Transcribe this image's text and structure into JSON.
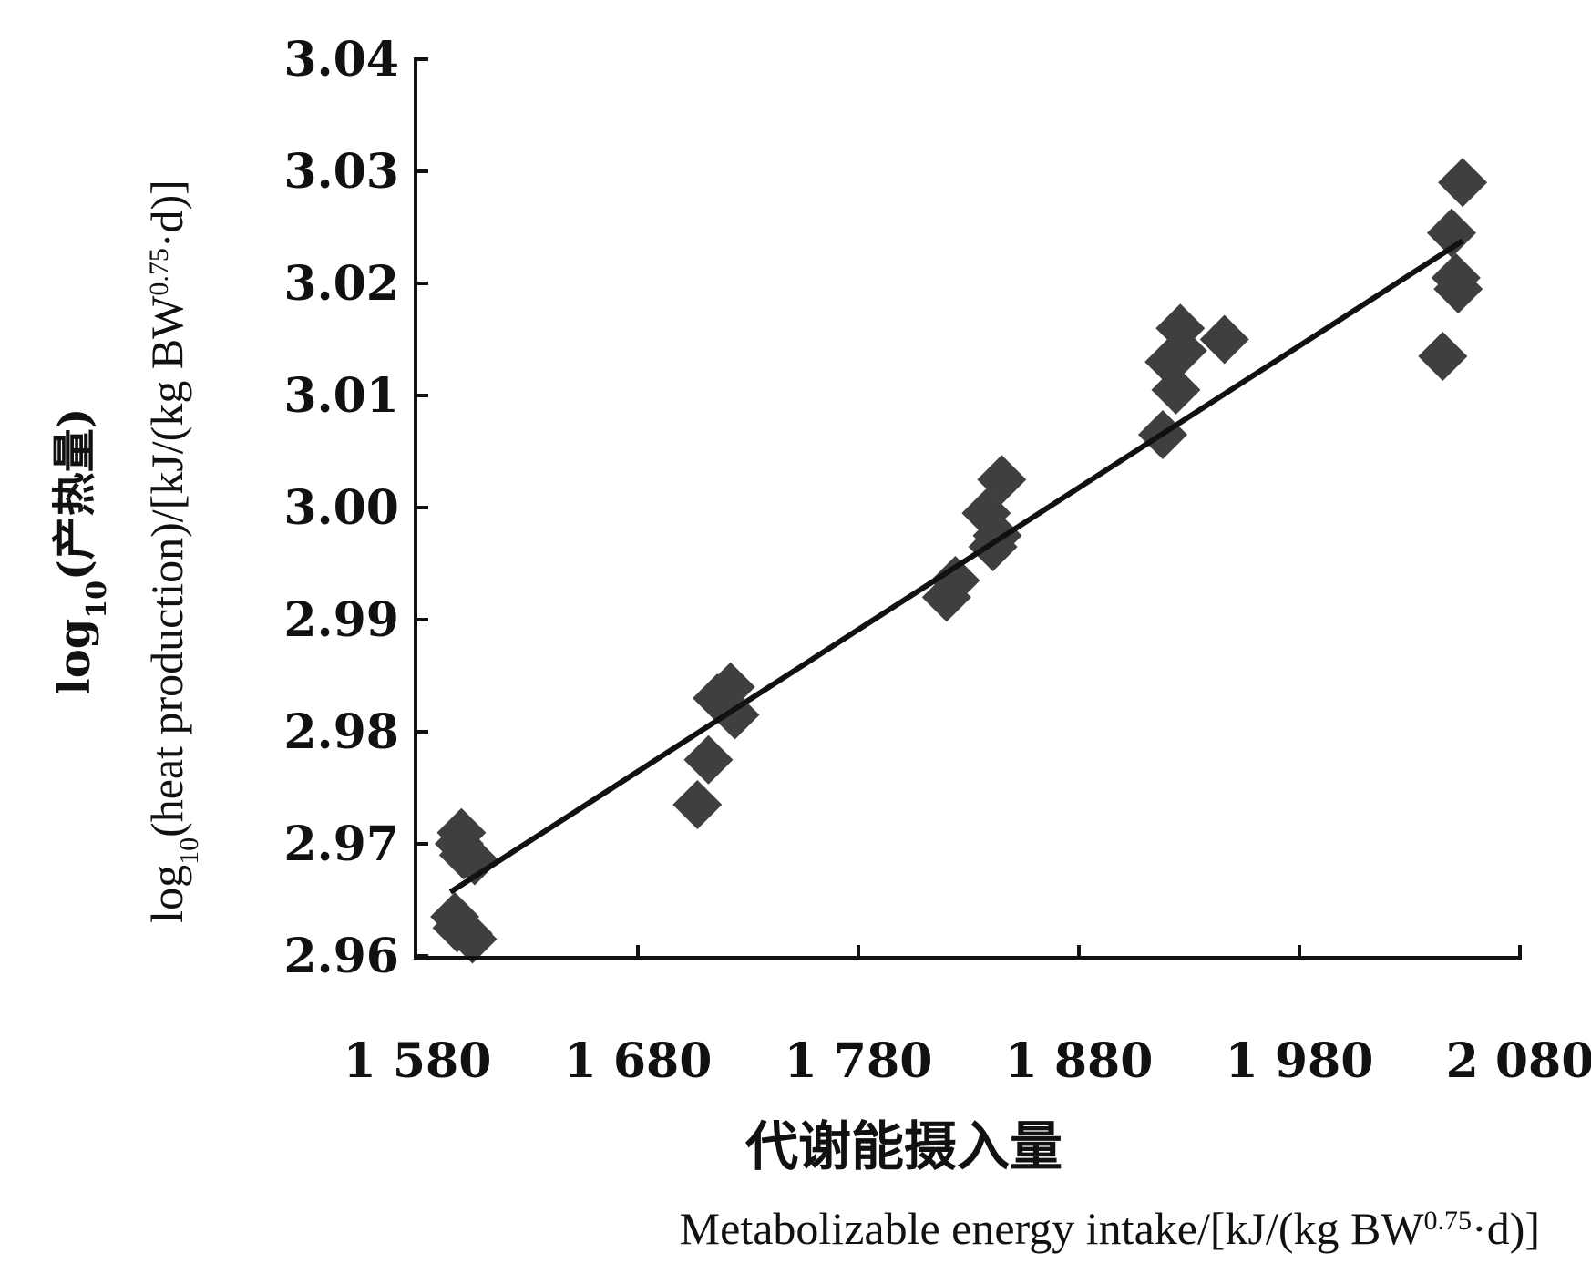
{
  "chart_data": {
    "type": "scatter",
    "x_tick_labels": [
      "1 580",
      "1 680",
      "1 780",
      "1 880",
      "1 980",
      "2 080"
    ],
    "x_ticks": [
      1580,
      1680,
      1780,
      1880,
      1980,
      2080
    ],
    "y_tick_labels": [
      "2.96",
      "2.97",
      "2.98",
      "2.99",
      "3.00",
      "3.01",
      "3.02",
      "3.03",
      "3.04"
    ],
    "y_ticks": [
      2.96,
      2.97,
      2.98,
      2.99,
      3.0,
      3.01,
      3.02,
      3.03,
      3.04
    ],
    "xlim": [
      1580,
      2080
    ],
    "ylim": [
      2.96,
      3.04
    ],
    "xlabel_cn": "代谢能摄入量",
    "xlabel_en": "Metabolizable energy intake/[kJ/(kg BW^0.75·d)]",
    "ylabel_cn": "log10(产热量)",
    "ylabel_en": "log10(heat production)/[kJ/(kg BW^0.75·d)]",
    "grid": false,
    "series": [
      {
        "points": [
          [
            1597,
            2.9635
          ],
          [
            1598,
            2.9625
          ],
          [
            1599,
            2.97
          ],
          [
            1600,
            2.971
          ],
          [
            1601,
            2.969
          ],
          [
            1603,
            2.962
          ],
          [
            1605,
            2.9615
          ],
          [
            1606,
            2.9685
          ],
          [
            1707,
            2.9735
          ],
          [
            1712,
            2.9775
          ],
          [
            1716,
            2.983
          ],
          [
            1722,
            2.984
          ],
          [
            1724,
            2.9815
          ],
          [
            1820,
            2.992
          ],
          [
            1824,
            2.9935
          ],
          [
            1838,
            2.9995
          ],
          [
            1841,
            2.9965
          ],
          [
            1843,
            2.9975
          ],
          [
            1845,
            3.0025
          ],
          [
            1918,
            3.0065
          ],
          [
            1921,
            3.013
          ],
          [
            1924,
            3.0105
          ],
          [
            1926,
            3.016
          ],
          [
            1927,
            3.014
          ],
          [
            1946,
            3.015
          ],
          [
            2045,
            3.0135
          ],
          [
            2049,
            3.0245
          ],
          [
            2051,
            3.0205
          ],
          [
            2052,
            3.0195
          ],
          [
            2054,
            3.029
          ]
        ]
      }
    ],
    "fit_line": {
      "x": [
        1595,
        2054
      ],
      "y": [
        2.9657,
        3.0238
      ]
    }
  }
}
